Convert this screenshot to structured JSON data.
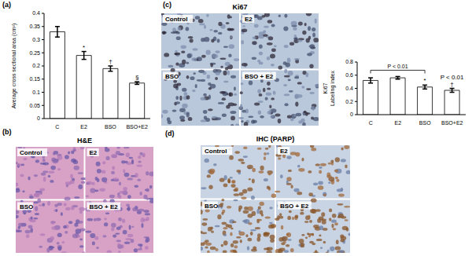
{
  "chart_data": [
    {
      "panel": "(a)",
      "type": "bar",
      "categories": [
        "C",
        "E2",
        "BSO",
        "BSO+E2"
      ],
      "values": [
        0.33,
        0.24,
        0.19,
        0.135
      ],
      "errors": [
        0.02,
        0.015,
        0.01,
        0.005
      ],
      "annotations": [
        {
          "category": "E2",
          "text": "*"
        },
        {
          "category": "BSO",
          "text": "†"
        },
        {
          "category": "BSO+E2",
          "text": "§"
        }
      ],
      "y_label": "Average cross sectional area (cm²)",
      "ylim": [
        0,
        0.4
      ],
      "yticks": [
        0,
        0.05,
        0.1,
        0.15,
        0.2,
        0.25,
        0.3,
        0.35,
        0.4
      ],
      "color": "#ffffff"
    },
    {
      "type": "bar",
      "title": "Ki67",
      "y_label": "Labeling index",
      "categories": [
        "C",
        "E2",
        "BSO",
        "BSO+E2"
      ],
      "values": [
        0.52,
        0.56,
        0.42,
        0.37
      ],
      "errors": [
        0.04,
        0.02,
        0.03,
        0.03
      ],
      "annotations": [
        {
          "category": "BSO",
          "text": "*"
        },
        {
          "category": "BSO+E2",
          "text": "†"
        },
        {
          "category": "BSO+E2",
          "text": "P < 0.01"
        }
      ],
      "bracket": {
        "from": "C",
        "to": "BSO",
        "text": "P < 0.01"
      },
      "ylim": [
        0,
        0.8
      ],
      "yticks": [
        0,
        0.2,
        0.4,
        0.6,
        0.8
      ],
      "color": "#ffffff"
    }
  ],
  "micrographs": [
    {
      "panel": "(b)",
      "title": "H&E",
      "labels": [
        "Control",
        "E2",
        "BSO",
        "BSO + E2"
      ]
    },
    {
      "panel": "(c)",
      "title": "Ki67",
      "labels": [
        "Control",
        "E2",
        "BSO",
        "BSO + E2"
      ]
    },
    {
      "panel": "(d)",
      "title": "IHC (PARP)",
      "labels": [
        "Control",
        "E2",
        "BSO",
        "BSO + E2"
      ]
    }
  ]
}
